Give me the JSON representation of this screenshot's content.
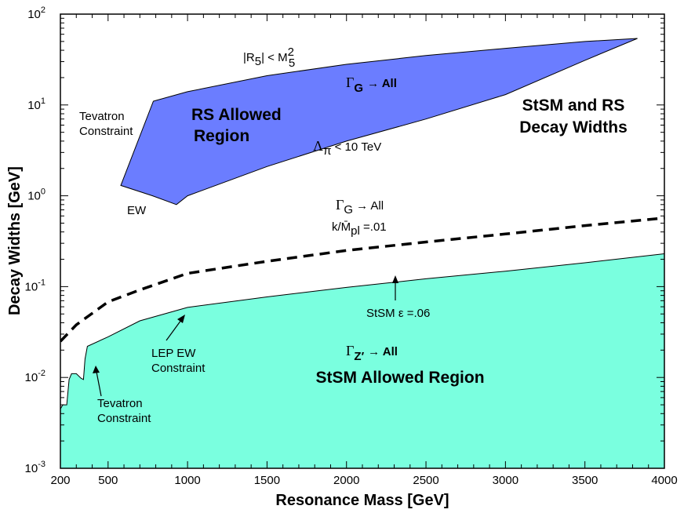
{
  "chart_data": {
    "type": "area",
    "title": "StSM and RS Decay Widths",
    "xlabel": "Resonance Mass  [GeV]",
    "ylabel": "Decay Widths  [GeV]",
    "xlim": [
      200,
      4000
    ],
    "ylim_log10": [
      -3,
      2
    ],
    "yscale": "log",
    "x_ticks": [
      200,
      500,
      1000,
      1500,
      2000,
      2500,
      3000,
      3500,
      4000
    ],
    "y_tick_exponents": [
      "2",
      "1",
      "0",
      "-1",
      "-2",
      "-3"
    ],
    "y_tick_base": "10",
    "series": [
      {
        "name": "RS Allowed Region",
        "kind": "band",
        "color": "#6b7dff",
        "polygon": [
          [
            580,
            1.3
          ],
          [
            785,
            11
          ],
          [
            1000,
            14
          ],
          [
            1500,
            21
          ],
          [
            2000,
            28
          ],
          [
            2500,
            35
          ],
          [
            3000,
            42
          ],
          [
            3500,
            50
          ],
          [
            3830,
            54
          ],
          [
            3500,
            31
          ],
          [
            3000,
            13
          ],
          [
            2500,
            7
          ],
          [
            2000,
            4
          ],
          [
            1500,
            2.1
          ],
          [
            1000,
            1.0
          ],
          [
            930,
            0.8
          ],
          [
            780,
            1.0
          ]
        ]
      },
      {
        "name": "RS k/Mpl = .01",
        "kind": "dashed-line",
        "color": "#000000",
        "points": [
          [
            200,
            0.025
          ],
          [
            300,
            0.038
          ],
          [
            500,
            0.068
          ],
          [
            700,
            0.092
          ],
          [
            1000,
            0.14
          ],
          [
            1500,
            0.19
          ],
          [
            2000,
            0.25
          ],
          [
            2500,
            0.31
          ],
          [
            3000,
            0.38
          ],
          [
            3500,
            0.47
          ],
          [
            4000,
            0.57
          ]
        ]
      },
      {
        "name": "StSM Allowed Region",
        "kind": "filled-area",
        "color": "#7affdf",
        "boundary": [
          [
            200,
            0.0045
          ],
          [
            215,
            0.005
          ],
          [
            240,
            0.005
          ],
          [
            255,
            0.0095
          ],
          [
            270,
            0.011
          ],
          [
            300,
            0.011
          ],
          [
            330,
            0.0098
          ],
          [
            345,
            0.0095
          ],
          [
            355,
            0.016
          ],
          [
            370,
            0.022
          ],
          [
            500,
            0.028
          ],
          [
            700,
            0.042
          ],
          [
            1000,
            0.059
          ],
          [
            1500,
            0.077
          ],
          [
            2000,
            0.098
          ],
          [
            2500,
            0.122
          ],
          [
            3000,
            0.148
          ],
          [
            3500,
            0.183
          ],
          [
            4000,
            0.23
          ]
        ]
      }
    ],
    "annotations": [
      {
        "text": "StSM and RS",
        "at": [
          3450,
          11.3
        ]
      },
      {
        "text": "Decay Widths",
        "at": [
          3450,
          6.0
        ]
      },
      {
        "text": "RS Allowed",
        "at": [
          1400,
          9.2
        ]
      },
      {
        "text": "Region",
        "at": [
          1100,
          5.0
        ]
      },
      {
        "text": "G",
        "prefix": "Γ",
        "suffix": "→ All",
        "at": [
          1300,
          3.1
        ]
      },
      {
        "text": "Tevatron",
        "at": [
          340,
          8.4
        ]
      },
      {
        "text": "Constraint",
        "at": [
          340,
          5.3
        ]
      },
      {
        "text": "EW",
        "at": [
          640,
          0.56
        ]
      },
      {
        "text": "Λπ < 10 TeV",
        "at": [
          2050,
          4.2
        ]
      },
      {
        "text": "|R5| < M5²",
        "at": [
          1500,
          36
        ]
      },
      {
        "text": "Γ G → All",
        "at": [
          2100,
          0.88
        ]
      },
      {
        "text": "k/M̄pl =.01",
        "at": [
          2100,
          0.5
        ]
      },
      {
        "text": "StSM  ε =.06",
        "at": [
          2200,
          0.045
        ]
      },
      {
        "text": "LEP EW",
        "at": [
          450,
          0.015
        ]
      },
      {
        "text": "Constraint",
        "at": [
          450,
          0.0095
        ]
      },
      {
        "text": "Tevatron",
        "at": [
          360,
          0.0042
        ]
      },
      {
        "text": "Constraint",
        "at": [
          360,
          0.0027
        ]
      },
      {
        "text": "Γ Z′ → All",
        "at": [
          2000,
          0.014
        ]
      },
      {
        "text": "StSM Allowed Region",
        "at": [
          2000,
          0.0095
        ]
      }
    ]
  },
  "labels": {
    "title_line1": "StSM and RS",
    "title_line2": "Decay Widths",
    "rs_region_line1": "RS Allowed",
    "rs_region_line2": "Region",
    "gamma": "Γ",
    "sub_g": "G",
    "sub_z": "Z′",
    "arrow_all": "→ All",
    "tev_rs_1": "Tevatron",
    "tev_rs_2": "Constraint",
    "ew": "EW",
    "lambda": "Λ",
    "sub_pi": "π",
    "lambda_rest": " < 10 TeV",
    "r5_a": "|R",
    "r5_sub": "5",
    "r5_b": "| < M",
    "m5_sup": "2",
    "m5_sub": "5",
    "kmpl_a": "k/M̄",
    "kmpl_sub": "pl",
    "kmpl_b": " =.01",
    "stsm_eps": "StSM  ε =.06",
    "lep_1": "LEP EW",
    "lep_2": "Constraint",
    "tev_st_1": "Tevatron",
    "tev_st_2": "Constraint",
    "stsm_region": "StSM Allowed Region"
  }
}
